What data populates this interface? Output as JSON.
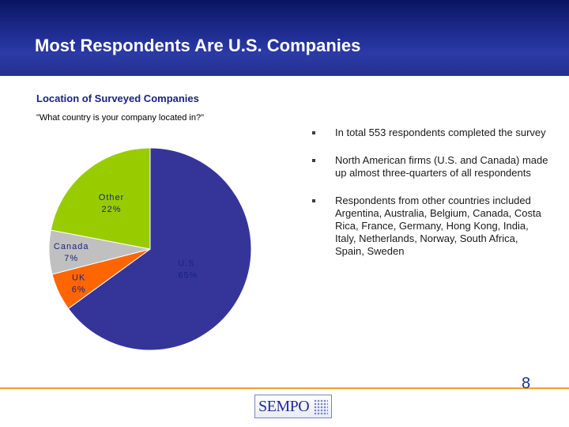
{
  "slide": {
    "title": "Most Respondents Are U.S. Companies",
    "subtitle": "Location of Surveyed Companies",
    "question": "\"What country is your company located in?\"",
    "page_number": "8"
  },
  "bullets": [
    "In total 553 respondents completed the survey",
    "North American firms (U.S. and Canada) made up almost three-quarters of all respondents",
    "Respondents from other countries included Argentina, Australia, Belgium, Canada, Costa Rica, France, Germany, Hong Kong, India, Italy, Netherlands, Norway, South Africa, Spain, Sweden"
  ],
  "logo": {
    "text": "SEMPO"
  },
  "chart_data": {
    "type": "pie",
    "title": "",
    "slices": [
      {
        "label": "U.S.",
        "value": 65,
        "display": "65%",
        "color": "#353599"
      },
      {
        "label": "UK",
        "value": 6,
        "display": "6%",
        "color": "#ff6600"
      },
      {
        "label": "Canada",
        "value": 7,
        "display": "7%",
        "color": "#c0c0c0"
      },
      {
        "label": "Other",
        "value": 22,
        "display": "22%",
        "color": "#99cc00"
      }
    ],
    "start_angle_deg": 0,
    "direction": "clockwise",
    "label_color": "#1a237e"
  }
}
